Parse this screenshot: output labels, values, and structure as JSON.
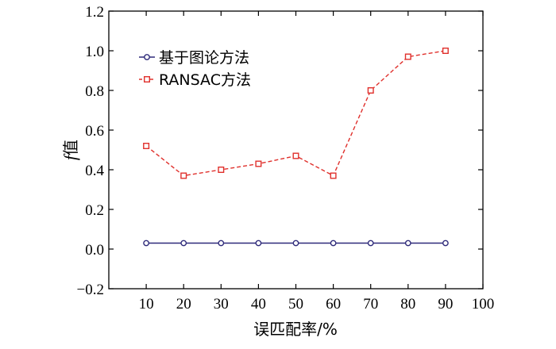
{
  "chart_data": {
    "type": "line",
    "title": "",
    "xlabel": "误匹配率/%",
    "ylabel_italic": "f",
    "ylabel_rest": "值",
    "x": [
      10,
      20,
      30,
      40,
      50,
      60,
      70,
      80,
      90
    ],
    "xlim": [
      0,
      100
    ],
    "ylim": [
      -0.2,
      1.2
    ],
    "x_ticks": [
      10,
      20,
      30,
      40,
      50,
      60,
      70,
      80,
      90,
      100
    ],
    "y_ticks": [
      -0.2,
      0.0,
      0.2,
      0.4,
      0.6,
      0.8,
      1.0,
      1.2
    ],
    "y_tick_labels": [
      "−0.2",
      "0.0",
      "0.2",
      "0.4",
      "0.6",
      "0.8",
      "1.0",
      "1.2"
    ],
    "grid": false,
    "legend_position": "top-left",
    "series": [
      {
        "name": "基于图论方法",
        "values": [
          0.03,
          0.03,
          0.03,
          0.03,
          0.03,
          0.03,
          0.03,
          0.03,
          0.03
        ],
        "color": "#2e2a7a",
        "marker": "circle",
        "line_style": "solid"
      },
      {
        "name": "RANSAC方法",
        "values": [
          0.52,
          0.37,
          0.4,
          0.43,
          0.47,
          0.37,
          0.8,
          0.97,
          1.0
        ],
        "color": "#e0302c",
        "marker": "square",
        "line_style": "dashed"
      }
    ]
  }
}
